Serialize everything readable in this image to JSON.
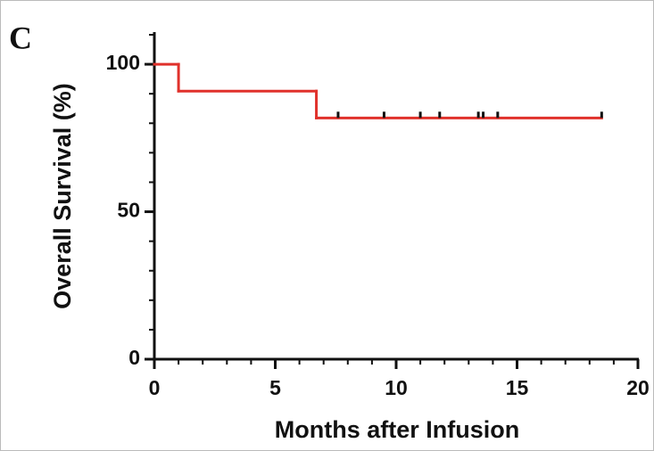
{
  "panel_label": "C",
  "chart_data": {
    "type": "step",
    "xlabel": "Months after Infusion",
    "ylabel": "Overall Survival (%)",
    "xlim": [
      0,
      20
    ],
    "xticks": [
      0,
      5,
      10,
      15,
      20
    ],
    "xminorticks": [
      1,
      2,
      3,
      4,
      6,
      7,
      8,
      9,
      11,
      12,
      13,
      14,
      16,
      17,
      18,
      19
    ],
    "ylim": [
      0,
      110
    ],
    "yticks": [
      0,
      50,
      100
    ],
    "yminorticks": [
      10,
      20,
      30,
      40,
      60,
      70,
      80,
      90,
      110
    ],
    "series": [
      {
        "color": "#e0312b",
        "x": [
          0,
          1,
          6.7,
          18.5
        ],
        "values": [
          100,
          90.9,
          81.8,
          81.8
        ],
        "censored_x": [
          7.6,
          9.5,
          11,
          11.8,
          13.4,
          13.6,
          14.2,
          18.5
        ],
        "censored_values": [
          81.8,
          81.8,
          81.8,
          81.8,
          81.8,
          81.8,
          81.8,
          81.8
        ]
      }
    ]
  }
}
